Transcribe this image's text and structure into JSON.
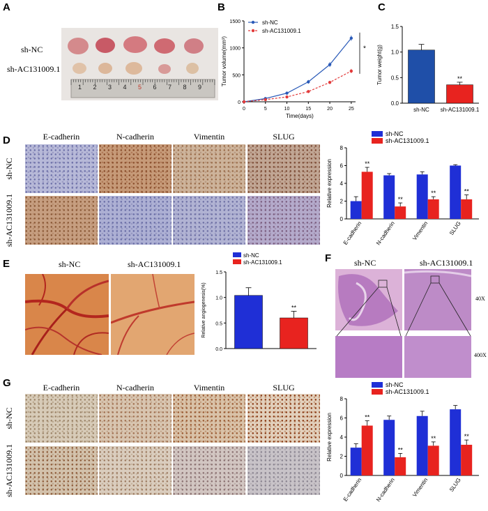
{
  "panels": {
    "A": {
      "letter": "A",
      "row_labels": [
        "sh-NC",
        "sh-AC131009.1"
      ],
      "ruler_numbers": [
        "1",
        "2",
        "3",
        "4",
        "5",
        "6",
        "7",
        "8",
        "9"
      ]
    },
    "B": {
      "letter": "B",
      "sig": "*"
    },
    "C": {
      "letter": "C"
    },
    "D": {
      "letter": "D",
      "columns": [
        "E-cadherin",
        "N-cadherin",
        "Vimentin",
        "SLUG"
      ],
      "rows": [
        "sh-NC",
        "sh-AC131009.1"
      ]
    },
    "E": {
      "letter": "E",
      "columns": [
        "sh-NC",
        "sh-AC131009.1"
      ]
    },
    "F": {
      "letter": "F",
      "columns": [
        "sh-NC",
        "sh-AC131009.1"
      ],
      "magnifications": [
        "40X",
        "400X"
      ]
    },
    "G": {
      "letter": "G",
      "columns": [
        "E-cadherin",
        "N-cadherin",
        "Vimentin",
        "SLUG"
      ],
      "rows": [
        "sh-NC",
        "sh-AC131009.1"
      ]
    }
  },
  "colors": {
    "nc": "#1f2fd6",
    "kd": "#e8231f",
    "c_bar": "#1f4fa8",
    "line_nc": "#2a5ab8",
    "line_kd": "#e23a3a"
  },
  "chart_data": [
    {
      "id": "B",
      "type": "line",
      "x": [
        0,
        5,
        10,
        15,
        20,
        25
      ],
      "series": [
        {
          "name": "sh-NC",
          "values": [
            0,
            60,
            160,
            370,
            690,
            1180
          ],
          "err": [
            0,
            15,
            25,
            35,
            45,
            50
          ]
        },
        {
          "name": "sh-AC131009.1",
          "values": [
            0,
            40,
            90,
            190,
            360,
            570
          ],
          "err": [
            0,
            10,
            15,
            25,
            30,
            40
          ]
        }
      ],
      "xlabel": "Time(days)",
      "ylabel": "Tumor volume(mm³)",
      "xticks": [
        "0",
        "5",
        "10",
        "15",
        "20",
        "25"
      ],
      "yticks": [
        "0",
        "500",
        "1000",
        "1500"
      ],
      "xlim": [
        0,
        26
      ],
      "ylim": [
        0,
        1500
      ],
      "legend": "top-left",
      "annotation": "*"
    },
    {
      "id": "C",
      "type": "bar",
      "categories": [
        "sh-NC",
        "sh-AC131009.1"
      ],
      "values": [
        1.04,
        0.36
      ],
      "err": [
        0.11,
        0.05
      ],
      "ylabel": "Tumor weight(g)",
      "yticks": [
        "0.0",
        "0.5",
        "1.0",
        "1.5"
      ],
      "ylim": [
        0,
        1.5
      ],
      "annotations": [
        "",
        "**"
      ]
    },
    {
      "id": "D",
      "type": "bar",
      "categories": [
        "E-cadherin",
        "N-cadherin",
        "Vimentin",
        "SLUG"
      ],
      "series": [
        {
          "name": "sh-NC",
          "values": [
            2.0,
            4.9,
            5.0,
            6.0
          ],
          "err": [
            0.5,
            0.2,
            0.3,
            0.1
          ]
        },
        {
          "name": "sh-AC131009.1",
          "values": [
            5.3,
            1.4,
            2.2,
            2.2
          ],
          "err": [
            0.5,
            0.4,
            0.3,
            0.5
          ]
        }
      ],
      "ylabel": "Relative expression",
      "yticks": [
        "0",
        "2",
        "4",
        "6",
        "8"
      ],
      "ylim": [
        0,
        8
      ],
      "annotations": [
        "**",
        "**",
        "**",
        "**"
      ],
      "legend": "top"
    },
    {
      "id": "E",
      "type": "bar",
      "categories": [
        "sh-NC",
        "sh-AC131009.1"
      ],
      "values": [
        1.04,
        0.6
      ],
      "err": [
        0.15,
        0.13
      ],
      "ylabel": "Relative angiogenesis(%)",
      "yticks": [
        "0.0",
        "0.5",
        "1.0",
        "1.5"
      ],
      "ylim": [
        0,
        1.5
      ],
      "annotations": [
        "",
        "**"
      ],
      "legend": "top"
    },
    {
      "id": "G",
      "type": "bar",
      "categories": [
        "E-cadherin",
        "N-cadherin",
        "Vimentin",
        "SLUG"
      ],
      "series": [
        {
          "name": "sh-NC",
          "values": [
            2.9,
            5.8,
            6.2,
            6.9
          ],
          "err": [
            0.4,
            0.4,
            0.5,
            0.4
          ]
        },
        {
          "name": "sh-AC131009.1",
          "values": [
            5.2,
            1.9,
            3.1,
            3.2
          ],
          "err": [
            0.5,
            0.4,
            0.4,
            0.5
          ]
        }
      ],
      "ylabel": "Relative expression",
      "yticks": [
        "0",
        "2",
        "4",
        "6",
        "8"
      ],
      "ylim": [
        0,
        8
      ],
      "annotations": [
        "**",
        "**",
        "**",
        "**"
      ],
      "legend": "top"
    }
  ]
}
